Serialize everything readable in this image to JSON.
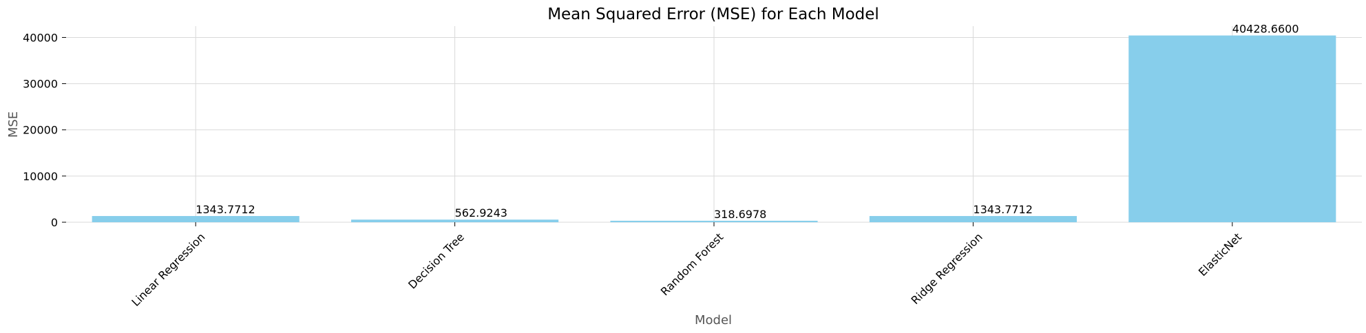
{
  "chart_data": {
    "type": "bar",
    "title": "Mean Squared Error (MSE) for Each Model",
    "xlabel": "Model",
    "ylabel": "MSE",
    "categories": [
      "Linear Regression",
      "Decision Tree",
      "Random Forest",
      "Ridge Regression",
      "ElasticNet"
    ],
    "values": [
      1343.7712,
      562.9243,
      318.6978,
      1343.7712,
      40428.66
    ],
    "data_labels": [
      "1343.7712",
      "562.9243",
      "318.6978",
      "1343.7712",
      "40428.6600"
    ],
    "yticks": [
      0,
      10000,
      20000,
      30000,
      40000
    ],
    "ylim": [
      0,
      42450
    ],
    "grid": true,
    "bar_color": "#87CEEB"
  }
}
